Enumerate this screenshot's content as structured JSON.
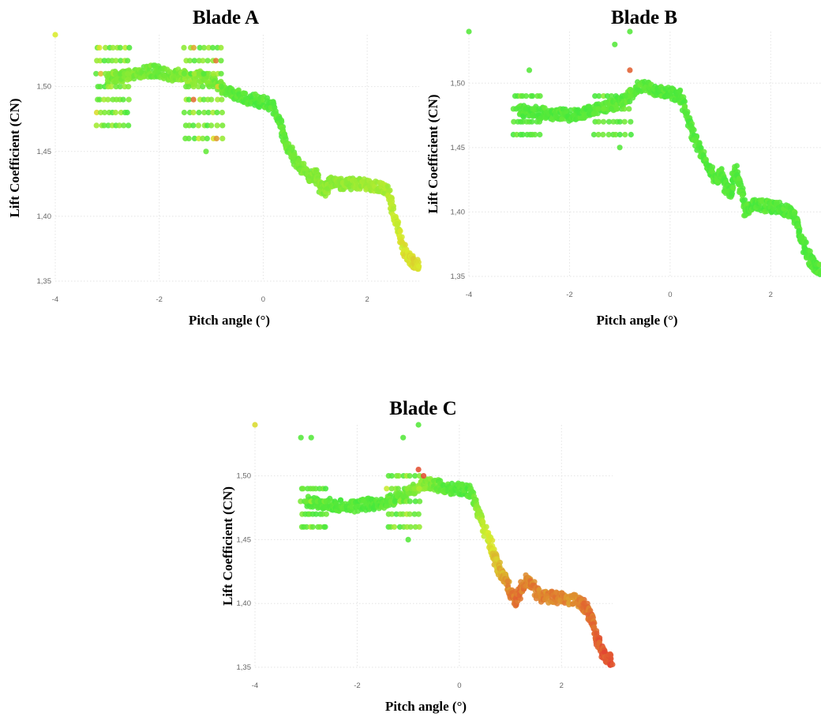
{
  "chart_data": [
    {
      "type": "scatter",
      "title": "Blade A",
      "xlabel": "Pitch angle (°)",
      "ylabel": "Lift Coefficient (CN)",
      "xlim": [
        -4,
        3
      ],
      "ylim": [
        1.35,
        1.54
      ],
      "xticks": [
        -4,
        -2,
        0,
        2
      ],
      "xtick_labels": [
        "-4",
        "-2",
        "0",
        "2"
      ],
      "yticks": [
        1.35,
        1.4,
        1.45,
        1.5
      ],
      "ytick_labels": [
        "1,35",
        "1,40",
        "1,45",
        "1,50"
      ],
      "grid": true,
      "color_scale": {
        "low": "#45e83c",
        "mid": "#d9ec2c",
        "high": "#e33d32"
      },
      "curve": [
        [
          -3.0,
          1.505,
          0.15
        ],
        [
          -2.8,
          1.508,
          0.18
        ],
        [
          -2.6,
          1.508,
          0.2
        ],
        [
          -2.4,
          1.51,
          0.18
        ],
        [
          -2.2,
          1.512,
          0.15
        ],
        [
          -2.0,
          1.512,
          0.12
        ],
        [
          -1.8,
          1.508,
          0.15
        ],
        [
          -1.6,
          1.51,
          0.2
        ],
        [
          -1.4,
          1.505,
          0.25
        ],
        [
          -1.2,
          1.508,
          0.2
        ],
        [
          -1.0,
          1.505,
          0.18
        ],
        [
          -0.8,
          1.5,
          0.12
        ],
        [
          -0.6,
          1.495,
          0.08
        ],
        [
          -0.4,
          1.492,
          0.06
        ],
        [
          -0.2,
          1.49,
          0.05
        ],
        [
          0.0,
          1.488,
          0.05
        ],
        [
          0.2,
          1.485,
          0.06
        ],
        [
          0.35,
          1.47,
          0.08
        ],
        [
          0.45,
          1.455,
          0.12
        ],
        [
          0.6,
          1.445,
          0.15
        ],
        [
          0.75,
          1.438,
          0.18
        ],
        [
          0.9,
          1.43,
          0.2
        ],
        [
          1.0,
          1.433,
          0.22
        ],
        [
          1.1,
          1.423,
          0.22
        ],
        [
          1.2,
          1.42,
          0.24
        ],
        [
          1.3,
          1.428,
          0.24
        ],
        [
          1.4,
          1.425,
          0.25
        ],
        [
          1.6,
          1.425,
          0.26
        ],
        [
          1.8,
          1.425,
          0.28
        ],
        [
          2.0,
          1.424,
          0.3
        ],
        [
          2.2,
          1.423,
          0.32
        ],
        [
          2.4,
          1.42,
          0.35
        ],
        [
          2.5,
          1.405,
          0.4
        ],
        [
          2.6,
          1.39,
          0.45
        ],
        [
          2.7,
          1.375,
          0.5
        ],
        [
          2.8,
          1.368,
          0.52
        ],
        [
          2.9,
          1.364,
          0.55
        ],
        [
          3.0,
          1.363,
          0.55
        ]
      ],
      "clusters": [
        {
          "x_range": [
            -3.2,
            -2.6
          ],
          "y_levels": [
            1.53,
            1.52,
            1.51,
            1.5,
            1.49,
            1.48,
            1.47
          ],
          "heat": 0.35
        },
        {
          "x_range": [
            -1.5,
            -0.8
          ],
          "y_levels": [
            1.53,
            1.52,
            1.51,
            1.5,
            1.49,
            1.48,
            1.47,
            1.46
          ],
          "heat": 0.35
        }
      ],
      "outliers": [
        [
          -4.0,
          1.54,
          0.5
        ],
        [
          -1.1,
          1.45,
          0.1
        ]
      ]
    },
    {
      "type": "scatter",
      "title": "Blade B",
      "xlabel": "Pitch angle (°)",
      "ylabel": "Lift Coefficient (CN)",
      "xlim": [
        -4,
        3
      ],
      "ylim": [
        1.35,
        1.54
      ],
      "xticks": [
        -4,
        -2,
        0,
        2
      ],
      "xtick_labels": [
        "-4",
        "-2",
        "0",
        "2"
      ],
      "yticks": [
        1.35,
        1.4,
        1.45,
        1.5
      ],
      "ytick_labels": [
        "1,35",
        "1,40",
        "1,45",
        "1,50"
      ],
      "grid": true,
      "color_scale": {
        "low": "#45e83c",
        "mid": "#d9ec2c",
        "high": "#e33d32"
      },
      "curve": [
        [
          -3.0,
          1.478,
          0.05
        ],
        [
          -2.8,
          1.478,
          0.05
        ],
        [
          -2.6,
          1.477,
          0.05
        ],
        [
          -2.4,
          1.476,
          0.05
        ],
        [
          -2.2,
          1.476,
          0.05
        ],
        [
          -2.0,
          1.475,
          0.05
        ],
        [
          -1.8,
          1.476,
          0.05
        ],
        [
          -1.6,
          1.478,
          0.05
        ],
        [
          -1.4,
          1.48,
          0.06
        ],
        [
          -1.2,
          1.482,
          0.08
        ],
        [
          -1.0,
          1.485,
          0.08
        ],
        [
          -0.8,
          1.49,
          0.1
        ],
        [
          -0.6,
          1.498,
          0.08
        ],
        [
          -0.4,
          1.496,
          0.06
        ],
        [
          -0.2,
          1.493,
          0.05
        ],
        [
          0.0,
          1.492,
          0.05
        ],
        [
          0.2,
          1.49,
          0.05
        ],
        [
          0.35,
          1.475,
          0.05
        ],
        [
          0.45,
          1.46,
          0.05
        ],
        [
          0.6,
          1.448,
          0.05
        ],
        [
          0.75,
          1.435,
          0.05
        ],
        [
          0.9,
          1.425,
          0.05
        ],
        [
          1.0,
          1.43,
          0.05
        ],
        [
          1.1,
          1.42,
          0.05
        ],
        [
          1.2,
          1.415,
          0.05
        ],
        [
          1.3,
          1.433,
          0.05
        ],
        [
          1.4,
          1.42,
          0.05
        ],
        [
          1.5,
          1.4,
          0.05
        ],
        [
          1.6,
          1.405,
          0.05
        ],
        [
          1.8,
          1.405,
          0.05
        ],
        [
          2.0,
          1.404,
          0.05
        ],
        [
          2.2,
          1.403,
          0.05
        ],
        [
          2.4,
          1.4,
          0.05
        ],
        [
          2.5,
          1.395,
          0.05
        ],
        [
          2.6,
          1.38,
          0.05
        ],
        [
          2.7,
          1.37,
          0.05
        ],
        [
          2.8,
          1.362,
          0.05
        ],
        [
          2.9,
          1.357,
          0.05
        ],
        [
          3.0,
          1.355,
          0.05
        ]
      ],
      "clusters": [
        {
          "x_range": [
            -3.1,
            -2.6
          ],
          "y_levels": [
            1.49,
            1.48,
            1.47,
            1.46
          ],
          "heat": 0.1
        },
        {
          "x_range": [
            -1.5,
            -0.8
          ],
          "y_levels": [
            1.49,
            1.48,
            1.47,
            1.46
          ],
          "heat": 0.15
        }
      ],
      "outliers": [
        [
          -4.0,
          1.54,
          0.05
        ],
        [
          -1.1,
          1.53,
          0.05
        ],
        [
          -0.8,
          1.51,
          0.9
        ],
        [
          -0.8,
          1.54,
          0.05
        ],
        [
          -1.0,
          1.45,
          0.05
        ],
        [
          -2.8,
          1.51,
          0.05
        ]
      ]
    },
    {
      "type": "scatter",
      "title": "Blade C",
      "xlabel": "Pitch angle (°)",
      "ylabel": "Lift Coefficient (CN)",
      "xlim": [
        -4,
        3
      ],
      "ylim": [
        1.35,
        1.54
      ],
      "xticks": [
        -4,
        -2,
        0,
        2
      ],
      "xtick_labels": [
        "-4",
        "-2",
        "0",
        "2"
      ],
      "yticks": [
        1.35,
        1.4,
        1.45,
        1.5
      ],
      "ytick_labels": [
        "1,35",
        "1,40",
        "1,45",
        "1,50"
      ],
      "grid": true,
      "color_scale": {
        "low": "#45e83c",
        "mid": "#d9ec2c",
        "high": "#e33d32"
      },
      "curve": [
        [
          -3.0,
          1.48,
          0.05
        ],
        [
          -2.8,
          1.478,
          0.05
        ],
        [
          -2.6,
          1.478,
          0.05
        ],
        [
          -2.4,
          1.477,
          0.05
        ],
        [
          -2.2,
          1.476,
          0.05
        ],
        [
          -2.0,
          1.476,
          0.05
        ],
        [
          -1.8,
          1.478,
          0.05
        ],
        [
          -1.6,
          1.478,
          0.05
        ],
        [
          -1.4,
          1.48,
          0.08
        ],
        [
          -1.2,
          1.483,
          0.1
        ],
        [
          -1.0,
          1.486,
          0.15
        ],
        [
          -0.8,
          1.492,
          0.25
        ],
        [
          -0.6,
          1.495,
          0.2
        ],
        [
          -0.4,
          1.492,
          0.1
        ],
        [
          -0.2,
          1.49,
          0.05
        ],
        [
          0.0,
          1.49,
          0.05
        ],
        [
          0.2,
          1.488,
          0.05
        ],
        [
          0.35,
          1.475,
          0.2
        ],
        [
          0.45,
          1.462,
          0.4
        ],
        [
          0.6,
          1.448,
          0.5
        ],
        [
          0.7,
          1.435,
          0.6
        ],
        [
          0.8,
          1.425,
          0.65
        ],
        [
          0.9,
          1.42,
          0.7
        ],
        [
          1.0,
          1.41,
          0.8
        ],
        [
          1.1,
          1.402,
          0.85
        ],
        [
          1.2,
          1.41,
          0.85
        ],
        [
          1.3,
          1.418,
          0.8
        ],
        [
          1.4,
          1.415,
          0.8
        ],
        [
          1.6,
          1.405,
          0.8
        ],
        [
          1.8,
          1.405,
          0.8
        ],
        [
          2.0,
          1.404,
          0.8
        ],
        [
          2.2,
          1.403,
          0.75
        ],
        [
          2.4,
          1.4,
          0.8
        ],
        [
          2.5,
          1.395,
          0.85
        ],
        [
          2.6,
          1.385,
          0.85
        ],
        [
          2.7,
          1.372,
          0.9
        ],
        [
          2.8,
          1.362,
          0.9
        ],
        [
          2.9,
          1.357,
          0.95
        ],
        [
          3.0,
          1.355,
          0.95
        ]
      ],
      "clusters": [
        {
          "x_range": [
            -3.1,
            -2.6
          ],
          "y_levels": [
            1.49,
            1.48,
            1.47,
            1.46
          ],
          "heat": 0.15
        },
        {
          "x_range": [
            -1.4,
            -0.8
          ],
          "y_levels": [
            1.5,
            1.49,
            1.48,
            1.47,
            1.46
          ],
          "heat": 0.3
        }
      ],
      "outliers": [
        [
          -4.0,
          1.54,
          0.55
        ],
        [
          -3.1,
          1.53,
          0.05
        ],
        [
          -2.9,
          1.53,
          0.05
        ],
        [
          -1.1,
          1.53,
          0.05
        ],
        [
          -0.8,
          1.54,
          0.05
        ],
        [
          -1.0,
          1.45,
          0.05
        ],
        [
          -0.8,
          1.505,
          0.95
        ],
        [
          -0.7,
          1.5,
          0.95
        ]
      ]
    }
  ]
}
